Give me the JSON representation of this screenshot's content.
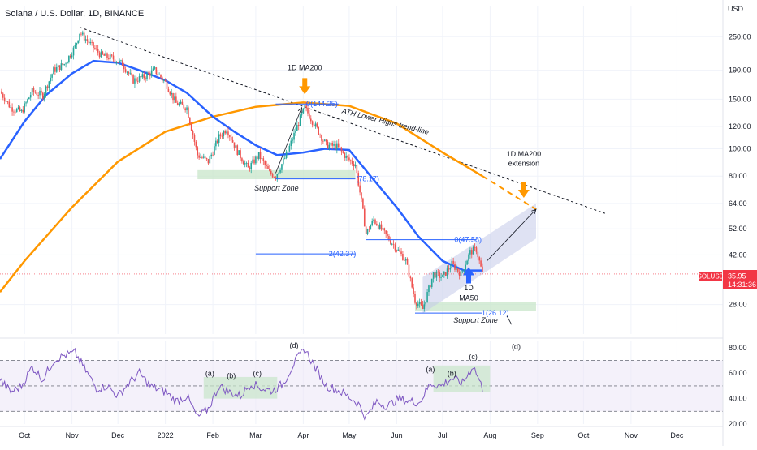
{
  "header": {
    "title": "Solana / U.S. Dollar, 1D, BINANCE"
  },
  "currency_label": "USD",
  "symbol_tag": {
    "symbol": "SOLUSD",
    "price": "35.95",
    "countdown": "14:31:36",
    "color": "#f23645"
  },
  "colors": {
    "ma50": "#2962ff",
    "ma200": "#ff9800",
    "candle_up": "#26a69a",
    "candle_down": "#ef5350",
    "fib_line": "#2962ff",
    "support_zone": "#c8e6c9",
    "channel": "#c5cae9",
    "rsi_line": "#7e57c2",
    "rsi_band": "#ede7f6",
    "arrow": "#ff9800",
    "arrow_blue": "#2962ff"
  },
  "chart_data": [
    {
      "type": "candlestick",
      "scale": "log",
      "ylim": [
        22,
        320
      ],
      "y_ticks": [
        {
          "v": 250,
          "label": "250.00"
        },
        {
          "v": 190,
          "label": "190.00"
        },
        {
          "v": 150,
          "label": "150.00"
        },
        {
          "v": 120,
          "label": "120.00"
        },
        {
          "v": 100,
          "label": "100.00"
        },
        {
          "v": 80,
          "label": "80.00"
        },
        {
          "v": 64,
          "label": "64.00"
        },
        {
          "v": 52,
          "label": "52.00"
        },
        {
          "v": 42,
          "label": "42.00"
        },
        {
          "v": 28,
          "label": "28.00"
        }
      ],
      "x_range": [
        "2021-09-15",
        "2022-12-31"
      ],
      "x_ticks": [
        {
          "date": "2021-10-01",
          "label": "Oct"
        },
        {
          "date": "2021-11-01",
          "label": "Nov"
        },
        {
          "date": "2021-12-01",
          "label": "Dec"
        },
        {
          "date": "2022-01-01",
          "label": "2022"
        },
        {
          "date": "2022-02-01",
          "label": "Feb"
        },
        {
          "date": "2022-03-01",
          "label": "Mar"
        },
        {
          "date": "2022-04-01",
          "label": "Apr"
        },
        {
          "date": "2022-05-01",
          "label": "May"
        },
        {
          "date": "2022-06-01",
          "label": "Jun"
        },
        {
          "date": "2022-07-01",
          "label": "Jul"
        },
        {
          "date": "2022-08-01",
          "label": "Aug"
        },
        {
          "date": "2022-09-01",
          "label": "Sep"
        },
        {
          "date": "2022-10-01",
          "label": "Oct"
        },
        {
          "date": "2022-11-01",
          "label": "Nov"
        },
        {
          "date": "2022-12-01",
          "label": "Dec"
        }
      ],
      "price_path": [
        [
          "2021-09-15",
          160
        ],
        [
          "2021-09-22",
          140
        ],
        [
          "2021-09-29",
          135
        ],
        [
          "2021-10-06",
          160
        ],
        [
          "2021-10-13",
          155
        ],
        [
          "2021-10-20",
          190
        ],
        [
          "2021-10-27",
          200
        ],
        [
          "2021-11-03",
          230
        ],
        [
          "2021-11-06",
          259
        ],
        [
          "2021-11-13",
          235
        ],
        [
          "2021-11-20",
          215
        ],
        [
          "2021-11-27",
          210
        ],
        [
          "2021-12-04",
          200
        ],
        [
          "2021-12-11",
          175
        ],
        [
          "2021-12-18",
          180
        ],
        [
          "2021-12-25",
          190
        ],
        [
          "2022-01-01",
          172
        ],
        [
          "2022-01-08",
          145
        ],
        [
          "2022-01-15",
          140
        ],
        [
          "2022-01-22",
          95
        ],
        [
          "2022-01-29",
          90
        ],
        [
          "2022-02-05",
          110
        ],
        [
          "2022-02-10",
          118
        ],
        [
          "2022-02-17",
          98
        ],
        [
          "2022-02-24",
          85
        ],
        [
          "2022-03-03",
          95
        ],
        [
          "2022-03-10",
          82
        ],
        [
          "2022-03-14",
          80
        ],
        [
          "2022-03-21",
          95
        ],
        [
          "2022-03-28",
          120
        ],
        [
          "2022-04-02",
          140
        ],
        [
          "2022-04-09",
          120
        ],
        [
          "2022-04-16",
          103
        ],
        [
          "2022-04-23",
          102
        ],
        [
          "2022-04-30",
          92
        ],
        [
          "2022-05-05",
          88
        ],
        [
          "2022-05-09",
          65
        ],
        [
          "2022-05-12",
          50
        ],
        [
          "2022-05-17",
          56
        ],
        [
          "2022-05-24",
          50
        ],
        [
          "2022-05-31",
          45
        ],
        [
          "2022-06-07",
          40
        ],
        [
          "2022-06-13",
          29
        ],
        [
          "2022-06-18",
          27
        ],
        [
          "2022-06-25",
          36
        ],
        [
          "2022-07-01",
          35
        ],
        [
          "2022-07-07",
          39
        ],
        [
          "2022-07-13",
          36
        ],
        [
          "2022-07-19",
          43
        ],
        [
          "2022-07-23",
          44
        ],
        [
          "2022-07-27",
          36
        ]
      ],
      "ma50": [
        [
          "2021-09-15",
          92
        ],
        [
          "2021-10-01",
          125
        ],
        [
          "2021-10-15",
          155
        ],
        [
          "2021-11-01",
          185
        ],
        [
          "2021-11-15",
          205
        ],
        [
          "2021-12-01",
          202
        ],
        [
          "2021-12-15",
          190
        ],
        [
          "2022-01-01",
          175
        ],
        [
          "2022-01-15",
          158
        ],
        [
          "2022-02-01",
          130
        ],
        [
          "2022-02-15",
          115
        ],
        [
          "2022-03-01",
          103
        ],
        [
          "2022-03-15",
          95
        ],
        [
          "2022-04-01",
          97
        ],
        [
          "2022-04-15",
          100
        ],
        [
          "2022-05-01",
          99
        ],
        [
          "2022-05-15",
          80
        ],
        [
          "2022-06-01",
          62
        ],
        [
          "2022-06-15",
          49
        ],
        [
          "2022-07-01",
          40
        ],
        [
          "2022-07-15",
          37
        ],
        [
          "2022-07-27",
          37
        ]
      ],
      "ma200": [
        [
          "2021-09-15",
          31
        ],
        [
          "2021-10-01",
          40
        ],
        [
          "2021-11-01",
          62
        ],
        [
          "2021-12-01",
          90
        ],
        [
          "2022-01-01",
          115
        ],
        [
          "2022-02-01",
          130
        ],
        [
          "2022-03-01",
          141
        ],
        [
          "2022-04-01",
          146
        ],
        [
          "2022-05-01",
          142
        ],
        [
          "2022-06-01",
          123
        ],
        [
          "2022-07-01",
          97
        ],
        [
          "2022-07-27",
          80
        ]
      ],
      "ma200_extension": [
        [
          "2022-07-27",
          80
        ],
        [
          "2022-08-31",
          61
        ]
      ],
      "trend_line": [
        [
          "2021-11-06",
          270
        ],
        [
          "2022-10-15",
          59
        ]
      ],
      "support_zones": [
        {
          "from": "2022-01-22",
          "to": "2022-05-05",
          "low": 78,
          "high": 84,
          "label": "Support Zone"
        },
        {
          "from": "2022-06-13",
          "to": "2022-08-31",
          "low": 26.5,
          "high": 28.5,
          "label": "Support Zone"
        }
      ],
      "fib_levels": [
        {
          "from": "2022-03-14",
          "to": "2022-04-24",
          "y": 144.25,
          "label": "0(144.25)",
          "label_at": "2022-04-24"
        },
        {
          "from": "2022-03-14",
          "to": "2022-05-05",
          "y": 78.17,
          "label": "(78.17)",
          "label_at": "2022-05-06"
        },
        {
          "from": "2022-05-12",
          "to": "2022-07-23",
          "y": 47.58,
          "label": "0(47.58)",
          "label_at": "2022-07-27"
        },
        {
          "from": "2022-03-01",
          "to": "2022-05-05",
          "y": 42.37,
          "label": "2(42.37)",
          "label_at": "2022-05-06"
        },
        {
          "from": "2022-06-13",
          "to": "2022-07-27",
          "y": 26.12,
          "label": "1(26.12)",
          "label_at": "2022-07-27"
        }
      ],
      "channel": [
        [
          "2022-06-18",
          26
        ],
        [
          "2022-08-31",
          48
        ],
        [
          "2022-08-31",
          64
        ],
        [
          "2022-06-18",
          35
        ]
      ],
      "annotations": [
        {
          "text": "1D MA200",
          "date": "2022-04-02",
          "y": 190
        },
        {
          "text": "ATH Lower Highs trend-line",
          "date": "2022-04-26",
          "y": 134
        },
        {
          "text": "1D MA200",
          "date": "2022-08-23",
          "y": 94
        },
        {
          "text": "extension",
          "date": "2022-08-23",
          "y": 87
        },
        {
          "text": "1D",
          "date": "2022-07-18",
          "y": 31.5
        },
        {
          "text": "MA50",
          "date": "2022-07-18",
          "y": 29
        }
      ],
      "current_price": 35.95
    },
    {
      "type": "line",
      "name": "RSI",
      "ylim": [
        20,
        85
      ],
      "y_ticks": [
        {
          "v": 80,
          "label": "80.00"
        },
        {
          "v": 60,
          "label": "60.00"
        },
        {
          "v": 40,
          "label": "40.00"
        },
        {
          "v": 20,
          "label": "20.00"
        }
      ],
      "band": [
        30,
        70
      ],
      "midline": 50,
      "values": [
        [
          "2021-09-15",
          55
        ],
        [
          "2021-09-22",
          45
        ],
        [
          "2021-09-29",
          50
        ],
        [
          "2021-10-06",
          65
        ],
        [
          "2021-10-13",
          55
        ],
        [
          "2021-10-20",
          70
        ],
        [
          "2021-10-27",
          74
        ],
        [
          "2021-11-03",
          76
        ],
        [
          "2021-11-10",
          62
        ],
        [
          "2021-11-17",
          48
        ],
        [
          "2021-11-24",
          50
        ],
        [
          "2021-12-01",
          42
        ],
        [
          "2021-12-08",
          52
        ],
        [
          "2021-12-15",
          60
        ],
        [
          "2021-12-22",
          50
        ],
        [
          "2022-01-01",
          45
        ],
        [
          "2022-01-08",
          38
        ],
        [
          "2022-01-15",
          42
        ],
        [
          "2022-01-22",
          25
        ],
        [
          "2022-01-29",
          32
        ],
        [
          "2022-02-05",
          50
        ],
        [
          "2022-02-12",
          45
        ],
        [
          "2022-02-19",
          42
        ],
        [
          "2022-02-26",
          52
        ],
        [
          "2022-03-05",
          48
        ],
        [
          "2022-03-12",
          46
        ],
        [
          "2022-03-19",
          52
        ],
        [
          "2022-03-26",
          68
        ],
        [
          "2022-04-02",
          79
        ],
        [
          "2022-04-09",
          64
        ],
        [
          "2022-04-16",
          50
        ],
        [
          "2022-04-23",
          47
        ],
        [
          "2022-04-30",
          42
        ],
        [
          "2022-05-07",
          36
        ],
        [
          "2022-05-12",
          25
        ],
        [
          "2022-05-19",
          38
        ],
        [
          "2022-05-26",
          34
        ],
        [
          "2022-06-02",
          40
        ],
        [
          "2022-06-09",
          38
        ],
        [
          "2022-06-16",
          37
        ],
        [
          "2022-06-23",
          52
        ],
        [
          "2022-06-30",
          50
        ],
        [
          "2022-07-07",
          56
        ],
        [
          "2022-07-14",
          52
        ],
        [
          "2022-07-21",
          66
        ],
        [
          "2022-07-27",
          48
        ]
      ],
      "highlight_zones": [
        {
          "from": "2022-01-26",
          "to": "2022-03-15",
          "low": 40,
          "high": 57
        },
        {
          "from": "2022-06-25",
          "to": "2022-08-01",
          "low": 45,
          "high": 66
        }
      ],
      "wave_labels": [
        {
          "text": "(a)",
          "date": "2022-01-30",
          "y": 58
        },
        {
          "text": "(b)",
          "date": "2022-02-13",
          "y": 56
        },
        {
          "text": "(c)",
          "date": "2022-03-02",
          "y": 58
        },
        {
          "text": "(d)",
          "date": "2022-03-26",
          "y": 80
        },
        {
          "text": "(a)",
          "date": "2022-06-23",
          "y": 61
        },
        {
          "text": "(b)",
          "date": "2022-07-07",
          "y": 58
        },
        {
          "text": "(c)",
          "date": "2022-07-21",
          "y": 71
        },
        {
          "text": "(d)",
          "date": "2022-08-18",
          "y": 79
        }
      ]
    }
  ]
}
